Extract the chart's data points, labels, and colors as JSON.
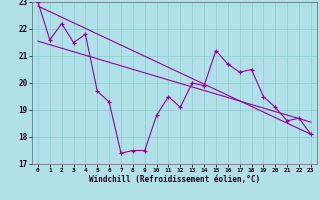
{
  "line1_x": [
    0,
    1,
    2,
    3,
    4,
    5,
    6,
    7,
    8,
    9,
    10,
    11,
    12,
    13,
    14,
    15,
    16,
    17,
    18,
    19,
    20,
    21,
    22,
    23
  ],
  "line1_y": [
    23.0,
    21.6,
    22.2,
    21.5,
    21.8,
    19.7,
    19.3,
    17.4,
    17.5,
    17.5,
    18.8,
    19.5,
    19.1,
    20.0,
    19.9,
    21.2,
    20.7,
    20.4,
    20.5,
    19.5,
    19.1,
    18.6,
    18.7,
    18.1
  ],
  "line2_x": [
    0,
    23
  ],
  "line2_y": [
    22.85,
    18.1
  ],
  "line3_x": [
    0,
    23
  ],
  "line3_y": [
    21.55,
    18.55
  ],
  "line_color": "#990099",
  "bg_color": "#b0e0e8",
  "grid_color": "#88cccc",
  "xlim": [
    -0.5,
    23.5
  ],
  "ylim": [
    17,
    23
  ],
  "yticks": [
    17,
    18,
    19,
    20,
    21,
    22,
    23
  ],
  "xticks": [
    0,
    1,
    2,
    3,
    4,
    5,
    6,
    7,
    8,
    9,
    10,
    11,
    12,
    13,
    14,
    15,
    16,
    17,
    18,
    19,
    20,
    21,
    22,
    23
  ],
  "xlabel": "Windchill (Refroidissement éolien,°C)",
  "marker": "+"
}
